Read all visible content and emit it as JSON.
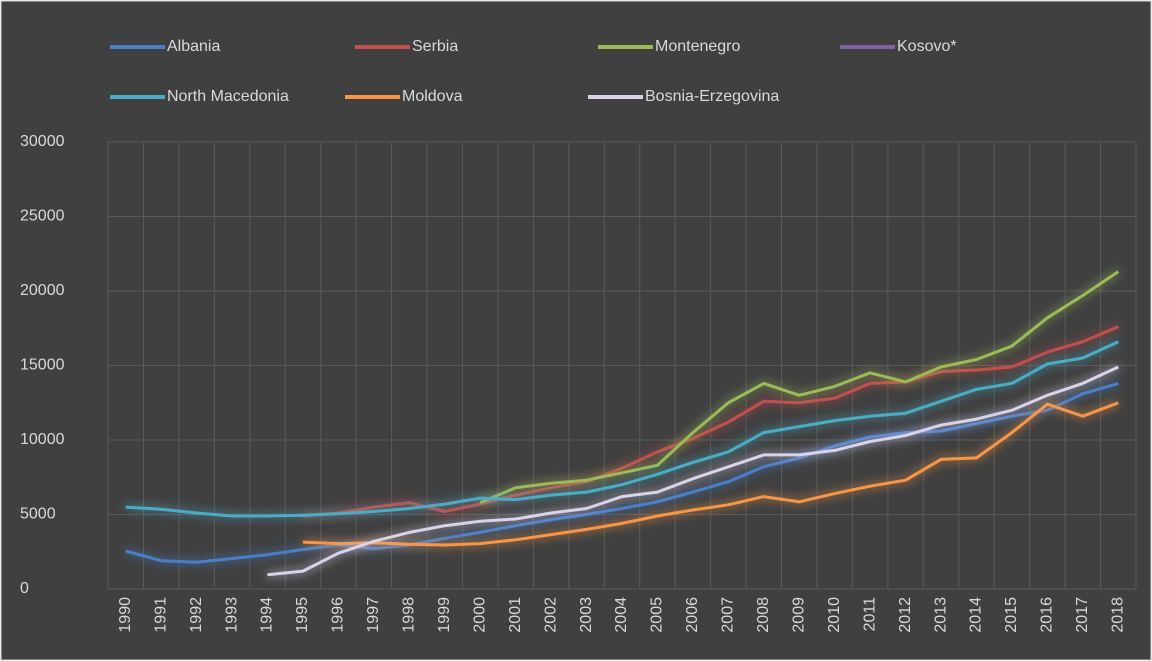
{
  "chart_data": {
    "type": "line",
    "categories": [
      "1990",
      "1991",
      "1992",
      "1993",
      "1994",
      "1995",
      "1996",
      "1997",
      "1998",
      "1999",
      "2000",
      "2001",
      "2002",
      "2003",
      "2004",
      "2005",
      "2006",
      "2007",
      "2008",
      "2009",
      "2010",
      "2011",
      "2012",
      "2013",
      "2014",
      "2015",
      "2016",
      "2017",
      "2018"
    ],
    "series": [
      {
        "name": "Albania",
        "color": "#4a7ec8",
        "values": [
          2550,
          1900,
          1800,
          2050,
          2300,
          2650,
          2950,
          2700,
          2950,
          3400,
          3800,
          4250,
          4650,
          5000,
          5400,
          5850,
          6500,
          7200,
          8200,
          8800,
          9600,
          10200,
          10500,
          10600,
          11100,
          11600,
          12000,
          13100,
          13800
        ]
      },
      {
        "name": "Serbia",
        "color": "#c0504d",
        "values": [
          null,
          null,
          null,
          null,
          null,
          4900,
          5100,
          5500,
          5800,
          5200,
          5700,
          6300,
          6800,
          7200,
          8100,
          9200,
          10100,
          11200,
          12600,
          12500,
          12800,
          13800,
          13900,
          14600,
          14700,
          14900,
          15900,
          16600,
          17600
        ]
      },
      {
        "name": "Montenegro",
        "color": "#9bbb59",
        "values": [
          null,
          null,
          null,
          null,
          null,
          null,
          null,
          null,
          null,
          null,
          5800,
          6800,
          7100,
          7300,
          7800,
          8300,
          10500,
          12500,
          13800,
          13000,
          13600,
          14500,
          13900,
          14900,
          15400,
          16300,
          18200,
          19700,
          21300
        ]
      },
      {
        "name": "Kosovo*",
        "color": "#8064a2",
        "values": [
          null,
          null,
          null,
          null,
          null,
          null,
          null,
          null,
          null,
          null,
          null,
          null,
          null,
          null,
          null,
          null,
          null,
          null,
          null,
          null,
          null,
          null,
          null,
          null,
          null,
          null,
          null,
          null,
          null
        ]
      },
      {
        "name": "North Macedonia",
        "color": "#4bacc6",
        "values": [
          5500,
          5350,
          5100,
          4900,
          4900,
          4950,
          5050,
          5200,
          5400,
          5700,
          6100,
          6000,
          6300,
          6500,
          7000,
          7700,
          8500,
          9200,
          10500,
          10900,
          11300,
          11600,
          11800,
          12600,
          13400,
          13800,
          15100,
          15500,
          16600
        ]
      },
      {
        "name": "Moldova",
        "color": "#f79646",
        "values": [
          null,
          null,
          null,
          null,
          null,
          3150,
          3050,
          3100,
          3000,
          2950,
          3050,
          3300,
          3650,
          4000,
          4400,
          4900,
          5300,
          5650,
          6200,
          5850,
          6400,
          6900,
          7300,
          8700,
          8800,
          10500,
          12400,
          11600,
          12500
        ]
      },
      {
        "name": "Bosnia-Erzegovina",
        "color": "#d9d2e9",
        "values": [
          null,
          null,
          null,
          null,
          950,
          1200,
          2400,
          3200,
          3800,
          4250,
          4550,
          4700,
          5100,
          5400,
          6200,
          6500,
          7400,
          8200,
          9000,
          9000,
          9300,
          9900,
          10300,
          11000,
          11400,
          12000,
          13000,
          13800,
          14900
        ]
      }
    ],
    "ylim": [
      0,
      30000
    ],
    "yticks": [
      0,
      5000,
      10000,
      15000,
      20000,
      25000,
      30000
    ],
    "grid": true
  }
}
